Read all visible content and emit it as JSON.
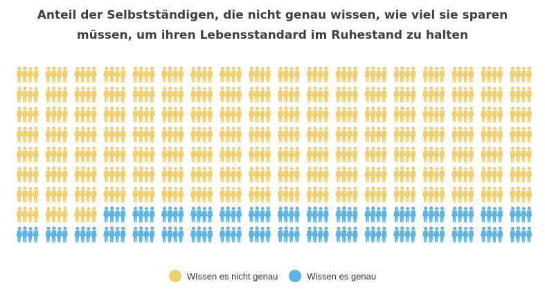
{
  "chart_data": {
    "type": "pictogram",
    "title_lines": [
      "Anteil der Selbstständigen, die nicht genau wissen, wie viel sie sparen",
      "müssen, um ihren Lebensstandard im Ruhestand zu halten"
    ],
    "rows": 9,
    "columns": 18,
    "total_icons": 162,
    "series": [
      {
        "name": "WIssen es nicht genau",
        "count": 129,
        "color": "#f2cf6e"
      },
      {
        "name": "Wissen es genau",
        "count": 33,
        "color": "#5ab4e5"
      }
    ],
    "icon": "group-of-people-icon"
  }
}
